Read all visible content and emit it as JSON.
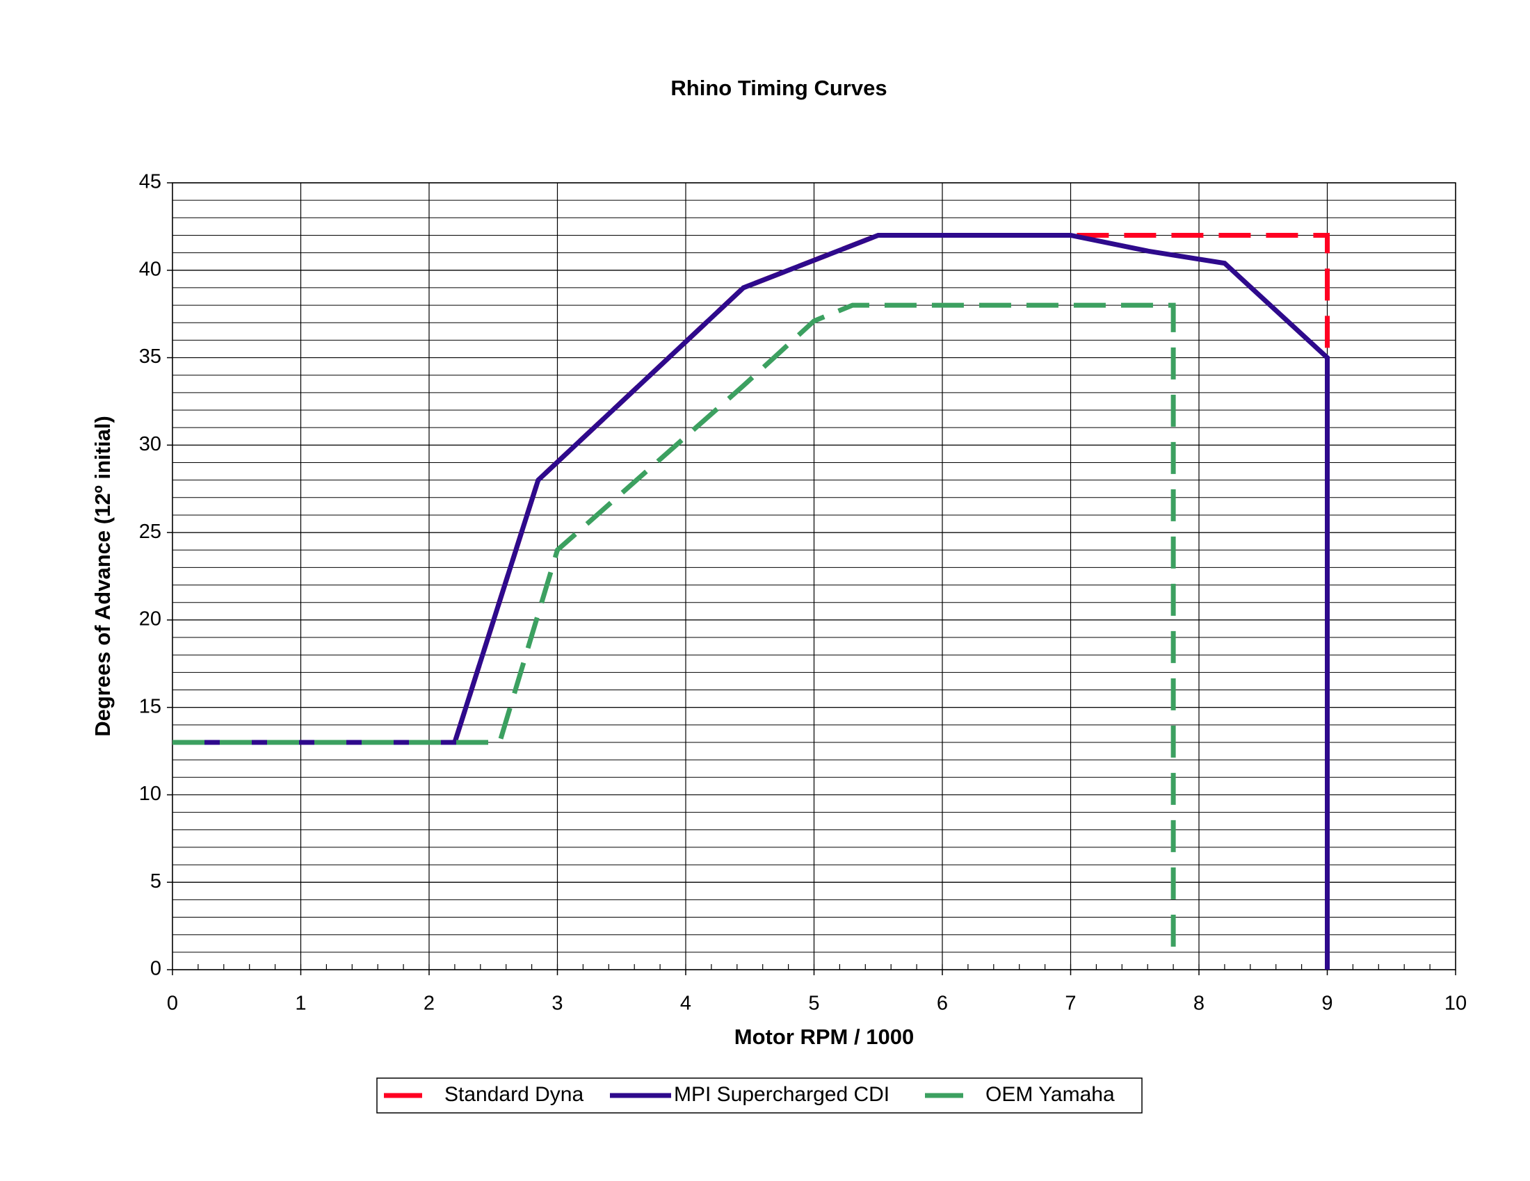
{
  "chart_data": {
    "type": "line",
    "title": "Rhino Timing Curves",
    "x_label": "Motor RPM / 1000",
    "y_label": "Degrees of Advance (12º initial)",
    "xlim": [
      0,
      10
    ],
    "xticks": [
      0,
      1,
      2,
      3,
      4,
      5,
      6,
      7,
      8,
      9,
      10
    ],
    "x_minor_step": 0.2,
    "ylim": [
      0,
      45
    ],
    "yticks": [
      0,
      5,
      10,
      15,
      20,
      25,
      30,
      35,
      40,
      45
    ],
    "y_minor_step": 1,
    "grid": true,
    "legend": "bottom",
    "series": [
      {
        "name": "Standard Dyna",
        "color": "#ff0022",
        "style": "dashed",
        "x": [
          0,
          2.2,
          2.85,
          4.45,
          5.5,
          7,
          9,
          9
        ],
        "y": [
          13,
          13,
          28,
          39,
          42,
          42,
          42,
          0
        ]
      },
      {
        "name": "MPI Supercharged CDI",
        "color": "#2e0a8c",
        "style": "solid",
        "x": [
          0,
          2.2,
          2.85,
          4.45,
          5.5,
          7,
          7.6,
          8.2,
          9,
          9
        ],
        "y": [
          13,
          13,
          28,
          39,
          42,
          42,
          41.1,
          40.4,
          35,
          0
        ]
      },
      {
        "name": "OEM Yamaha",
        "color": "#3ca060",
        "style": "dashed",
        "x": [
          0,
          2.55,
          3,
          4.45,
          5,
          5.3,
          7.8,
          7.8
        ],
        "y": [
          13,
          13,
          24,
          33.4,
          37.1,
          38,
          38,
          0.6
        ]
      }
    ]
  }
}
